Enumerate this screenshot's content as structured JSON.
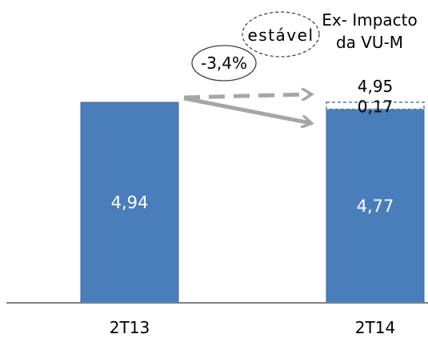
{
  "chart_data": {
    "type": "bar",
    "categories": [
      "2T13",
      "2T14"
    ],
    "series": [
      {
        "values": [
          4.94,
          4.77
        ]
      },
      {
        "values": [
          0,
          0.17
        ]
      }
    ],
    "ylim": [
      0,
      5.5
    ],
    "grid": false,
    "colors": {
      "bar": "#4a7ebb",
      "bar_border": "#3b6aa0",
      "increment_border": "#4a7ebb",
      "arrow": "#a6a6a6",
      "axis": "#808080",
      "ellipse": "#404040"
    },
    "data_labels": {
      "bar_2t13": "4,94",
      "bar_2t14": "4,77",
      "increment": "0,17",
      "total": "4,95"
    },
    "annotations": {
      "stable": "estável",
      "change": "-3,4%",
      "ex_impact_line1": "Ex- Impacto",
      "ex_impact_line2": "da VU-M"
    }
  }
}
